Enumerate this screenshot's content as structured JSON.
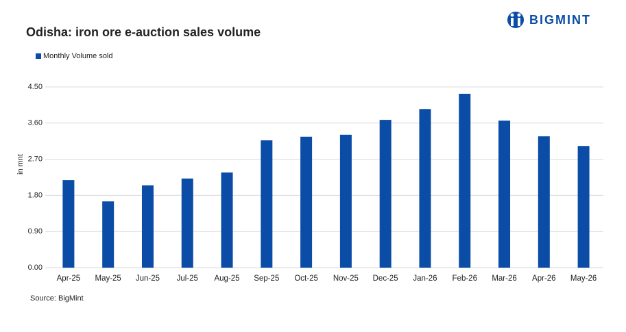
{
  "logo": "BIGMINT",
  "chart_data": {
    "type": "bar",
    "title": "Odisha: iron ore e-auction sales volume",
    "y_label": "in mnt",
    "source": "Source: BigMint",
    "legend_position": "top-left",
    "grid": true,
    "categories": [
      "Apr-25",
      "May-25",
      "Jun-25",
      "Jul-25",
      "Aug-25",
      "Sep-25",
      "Oct-25",
      "Nov-25",
      "Dec-25",
      "Jan-26",
      "Feb-26",
      "Mar-26",
      "Apr-26",
      "May-26"
    ],
    "series": [
      {
        "name": "Monthly Volume sold",
        "color": "#0a4ca6",
        "values": [
          2.18,
          1.65,
          2.05,
          2.22,
          2.37,
          3.17,
          3.26,
          3.31,
          3.68,
          3.95,
          4.33,
          3.66,
          3.27,
          3.03
        ]
      }
    ],
    "ylim": [
      0,
      4.5
    ],
    "yticks": [
      {
        "value": 0,
        "label": "0.00"
      },
      {
        "value": 0.9,
        "label": "0.90"
      },
      {
        "value": 1.8,
        "label": "1.80"
      },
      {
        "value": 2.7,
        "label": "2.70"
      },
      {
        "value": 3.6,
        "label": "3.60"
      },
      {
        "value": 4.5,
        "label": "4.50"
      }
    ]
  }
}
